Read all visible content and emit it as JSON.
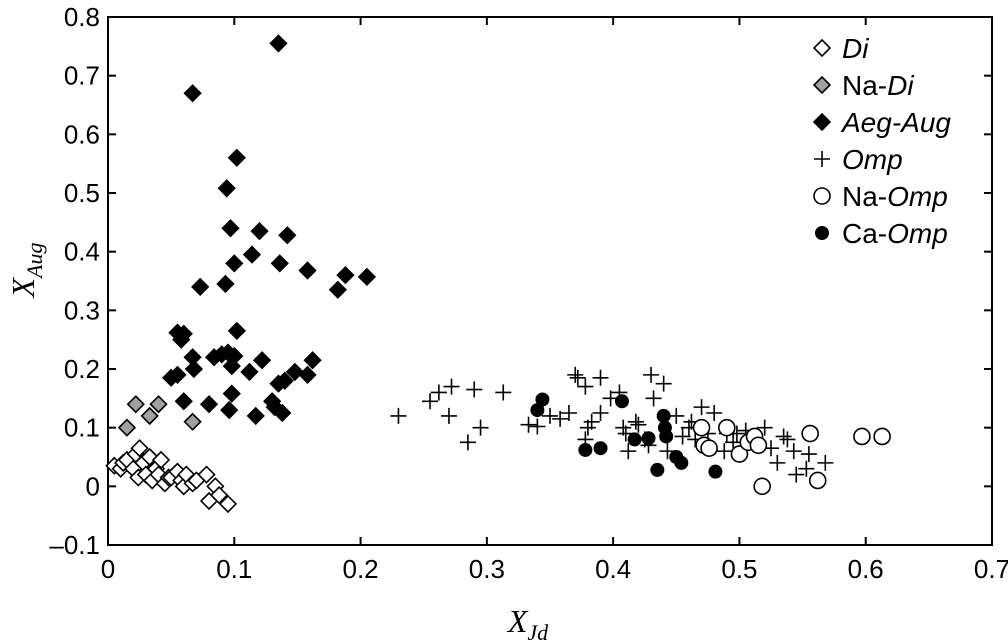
{
  "chart_data": {
    "type": "scatter",
    "xlabel": "X",
    "xlabel_sub": "Jd",
    "ylabel": "X",
    "ylabel_sub": "Aug",
    "xlim": [
      0,
      0.7
    ],
    "ylim": [
      -0.1,
      0.8
    ],
    "xticks": [
      0,
      0.1,
      0.2,
      0.3,
      0.4,
      0.5,
      0.6,
      0.7
    ],
    "xtick_labels": [
      "0",
      "0.1",
      "0.2",
      "0.3",
      "0.4",
      "0.5",
      "0.6",
      "0.7"
    ],
    "yticks": [
      -0.1,
      0,
      0.1,
      0.2,
      0.3,
      0.4,
      0.5,
      0.6,
      0.7,
      0.8
    ],
    "ytick_labels": [
      "–0.1",
      "0",
      "0.1",
      "0.2",
      "0.3",
      "0.4",
      "0.5",
      "0.6",
      "0.7",
      "0.8"
    ],
    "legend_position": "top-right",
    "series": [
      {
        "name": "Di",
        "name_parts": [
          {
            "text": "Di",
            "italic": true
          }
        ],
        "marker": "diamond-open",
        "points": [
          [
            0.005,
            0.035
          ],
          [
            0.01,
            0.03
          ],
          [
            0.012,
            0.04
          ],
          [
            0.015,
            0.045
          ],
          [
            0.02,
            0.03
          ],
          [
            0.022,
            0.055
          ],
          [
            0.025,
            0.065
          ],
          [
            0.024,
            0.015
          ],
          [
            0.028,
            0.04
          ],
          [
            0.03,
            0.02
          ],
          [
            0.033,
            0.05
          ],
          [
            0.035,
            0.01
          ],
          [
            0.038,
            0.03
          ],
          [
            0.04,
            0.02
          ],
          [
            0.042,
            0.045
          ],
          [
            0.045,
            0.005
          ],
          [
            0.048,
            0.015
          ],
          [
            0.05,
            0.015
          ],
          [
            0.055,
            0.025
          ],
          [
            0.058,
            0.01
          ],
          [
            0.06,
            0.0
          ],
          [
            0.062,
            0.02
          ],
          [
            0.067,
            0.005
          ],
          [
            0.07,
            0.01
          ],
          [
            0.078,
            0.02
          ],
          [
            0.08,
            -0.025
          ],
          [
            0.085,
            0.0
          ],
          [
            0.088,
            -0.015
          ],
          [
            0.095,
            -0.03
          ]
        ]
      },
      {
        "name": "Na-Di",
        "name_parts": [
          {
            "text": "Na-",
            "italic": false
          },
          {
            "text": "Di",
            "italic": true
          }
        ],
        "marker": "diamond-gray",
        "points": [
          [
            0.015,
            0.1
          ],
          [
            0.022,
            0.14
          ],
          [
            0.033,
            0.12
          ],
          [
            0.04,
            0.14
          ],
          [
            0.067,
            0.11
          ]
        ]
      },
      {
        "name": "Aeg-Aug",
        "name_parts": [
          {
            "text": "Aeg-Aug",
            "italic": true
          }
        ],
        "marker": "diamond-filled",
        "points": [
          [
            0.135,
            0.755
          ],
          [
            0.067,
            0.67
          ],
          [
            0.102,
            0.56
          ],
          [
            0.094,
            0.508
          ],
          [
            0.097,
            0.44
          ],
          [
            0.12,
            0.435
          ],
          [
            0.142,
            0.428
          ],
          [
            0.114,
            0.395
          ],
          [
            0.1,
            0.38
          ],
          [
            0.136,
            0.38
          ],
          [
            0.158,
            0.368
          ],
          [
            0.188,
            0.36
          ],
          [
            0.205,
            0.357
          ],
          [
            0.093,
            0.345
          ],
          [
            0.073,
            0.34
          ],
          [
            0.182,
            0.335
          ],
          [
            0.102,
            0.265
          ],
          [
            0.055,
            0.262
          ],
          [
            0.058,
            0.25
          ],
          [
            0.06,
            0.26
          ],
          [
            0.067,
            0.22
          ],
          [
            0.084,
            0.22
          ],
          [
            0.09,
            0.225
          ],
          [
            0.095,
            0.228
          ],
          [
            0.1,
            0.222
          ],
          [
            0.098,
            0.205
          ],
          [
            0.068,
            0.2
          ],
          [
            0.122,
            0.215
          ],
          [
            0.162,
            0.215
          ],
          [
            0.112,
            0.195
          ],
          [
            0.055,
            0.19
          ],
          [
            0.05,
            0.185
          ],
          [
            0.135,
            0.175
          ],
          [
            0.158,
            0.19
          ],
          [
            0.08,
            0.14
          ],
          [
            0.06,
            0.145
          ],
          [
            0.096,
            0.13
          ],
          [
            0.098,
            0.158
          ],
          [
            0.117,
            0.12
          ],
          [
            0.13,
            0.145
          ],
          [
            0.132,
            0.135
          ],
          [
            0.138,
            0.125
          ],
          [
            0.14,
            0.18
          ],
          [
            0.148,
            0.195
          ]
        ]
      },
      {
        "name": "Omp",
        "name_parts": [
          {
            "text": "Omp",
            "italic": true
          }
        ],
        "marker": "plus",
        "points": [
          [
            0.23,
            0.12
          ],
          [
            0.255,
            0.145
          ],
          [
            0.262,
            0.16
          ],
          [
            0.27,
            0.12
          ],
          [
            0.272,
            0.17
          ],
          [
            0.29,
            0.165
          ],
          [
            0.295,
            0.1
          ],
          [
            0.285,
            0.075
          ],
          [
            0.313,
            0.16
          ],
          [
            0.333,
            0.105
          ],
          [
            0.34,
            0.102
          ],
          [
            0.35,
            0.12
          ],
          [
            0.358,
            0.115
          ],
          [
            0.365,
            0.125
          ],
          [
            0.37,
            0.19
          ],
          [
            0.372,
            0.185
          ],
          [
            0.378,
            0.17
          ],
          [
            0.38,
            0.1
          ],
          [
            0.378,
            0.08
          ],
          [
            0.383,
            0.11
          ],
          [
            0.39,
            0.185
          ],
          [
            0.39,
            0.125
          ],
          [
            0.398,
            0.15
          ],
          [
            0.405,
            0.16
          ],
          [
            0.408,
            0.1
          ],
          [
            0.41,
            0.09
          ],
          [
            0.412,
            0.06
          ],
          [
            0.418,
            0.11
          ],
          [
            0.42,
            0.105
          ],
          [
            0.425,
            0.08
          ],
          [
            0.428,
            0.07
          ],
          [
            0.43,
            0.19
          ],
          [
            0.432,
            0.15
          ],
          [
            0.44,
            0.175
          ],
          [
            0.443,
            0.06
          ],
          [
            0.45,
            0.12
          ],
          [
            0.455,
            0.085
          ],
          [
            0.46,
            0.1
          ],
          [
            0.462,
            0.11
          ],
          [
            0.465,
            0.08
          ],
          [
            0.47,
            0.135
          ],
          [
            0.475,
            0.09
          ],
          [
            0.48,
            0.125
          ],
          [
            0.488,
            0.06
          ],
          [
            0.49,
            0.09
          ],
          [
            0.495,
            0.075
          ],
          [
            0.498,
            0.09
          ],
          [
            0.505,
            0.095
          ],
          [
            0.51,
            0.075
          ],
          [
            0.52,
            0.1
          ],
          [
            0.525,
            0.065
          ],
          [
            0.53,
            0.04
          ],
          [
            0.535,
            0.085
          ],
          [
            0.538,
            0.08
          ],
          [
            0.543,
            0.06
          ],
          [
            0.545,
            0.02
          ],
          [
            0.553,
            0.03
          ],
          [
            0.555,
            0.055
          ],
          [
            0.568,
            0.04
          ]
        ]
      },
      {
        "name": "Na-Omp",
        "name_parts": [
          {
            "text": "Na-",
            "italic": false
          },
          {
            "text": "Omp",
            "italic": true
          }
        ],
        "marker": "circle-open",
        "points": [
          [
            0.47,
            0.1
          ],
          [
            0.472,
            0.07
          ],
          [
            0.476,
            0.065
          ],
          [
            0.49,
            0.1
          ],
          [
            0.5,
            0.055
          ],
          [
            0.507,
            0.075
          ],
          [
            0.512,
            0.085
          ],
          [
            0.515,
            0.07
          ],
          [
            0.518,
            0.0
          ],
          [
            0.556,
            0.09
          ],
          [
            0.562,
            0.01
          ],
          [
            0.597,
            0.085
          ],
          [
            0.613,
            0.085
          ]
        ]
      },
      {
        "name": "Ca-Omp",
        "name_parts": [
          {
            "text": "Ca-",
            "italic": false
          },
          {
            "text": "Omp",
            "italic": true
          }
        ],
        "marker": "circle-filled",
        "points": [
          [
            0.34,
            0.13
          ],
          [
            0.344,
            0.148
          ],
          [
            0.378,
            0.062
          ],
          [
            0.39,
            0.065
          ],
          [
            0.407,
            0.145
          ],
          [
            0.417,
            0.08
          ],
          [
            0.428,
            0.082
          ],
          [
            0.435,
            0.028
          ],
          [
            0.44,
            0.12
          ],
          [
            0.441,
            0.1
          ],
          [
            0.442,
            0.085
          ],
          [
            0.45,
            0.05
          ],
          [
            0.454,
            0.04
          ],
          [
            0.481,
            0.025
          ]
        ]
      }
    ]
  }
}
